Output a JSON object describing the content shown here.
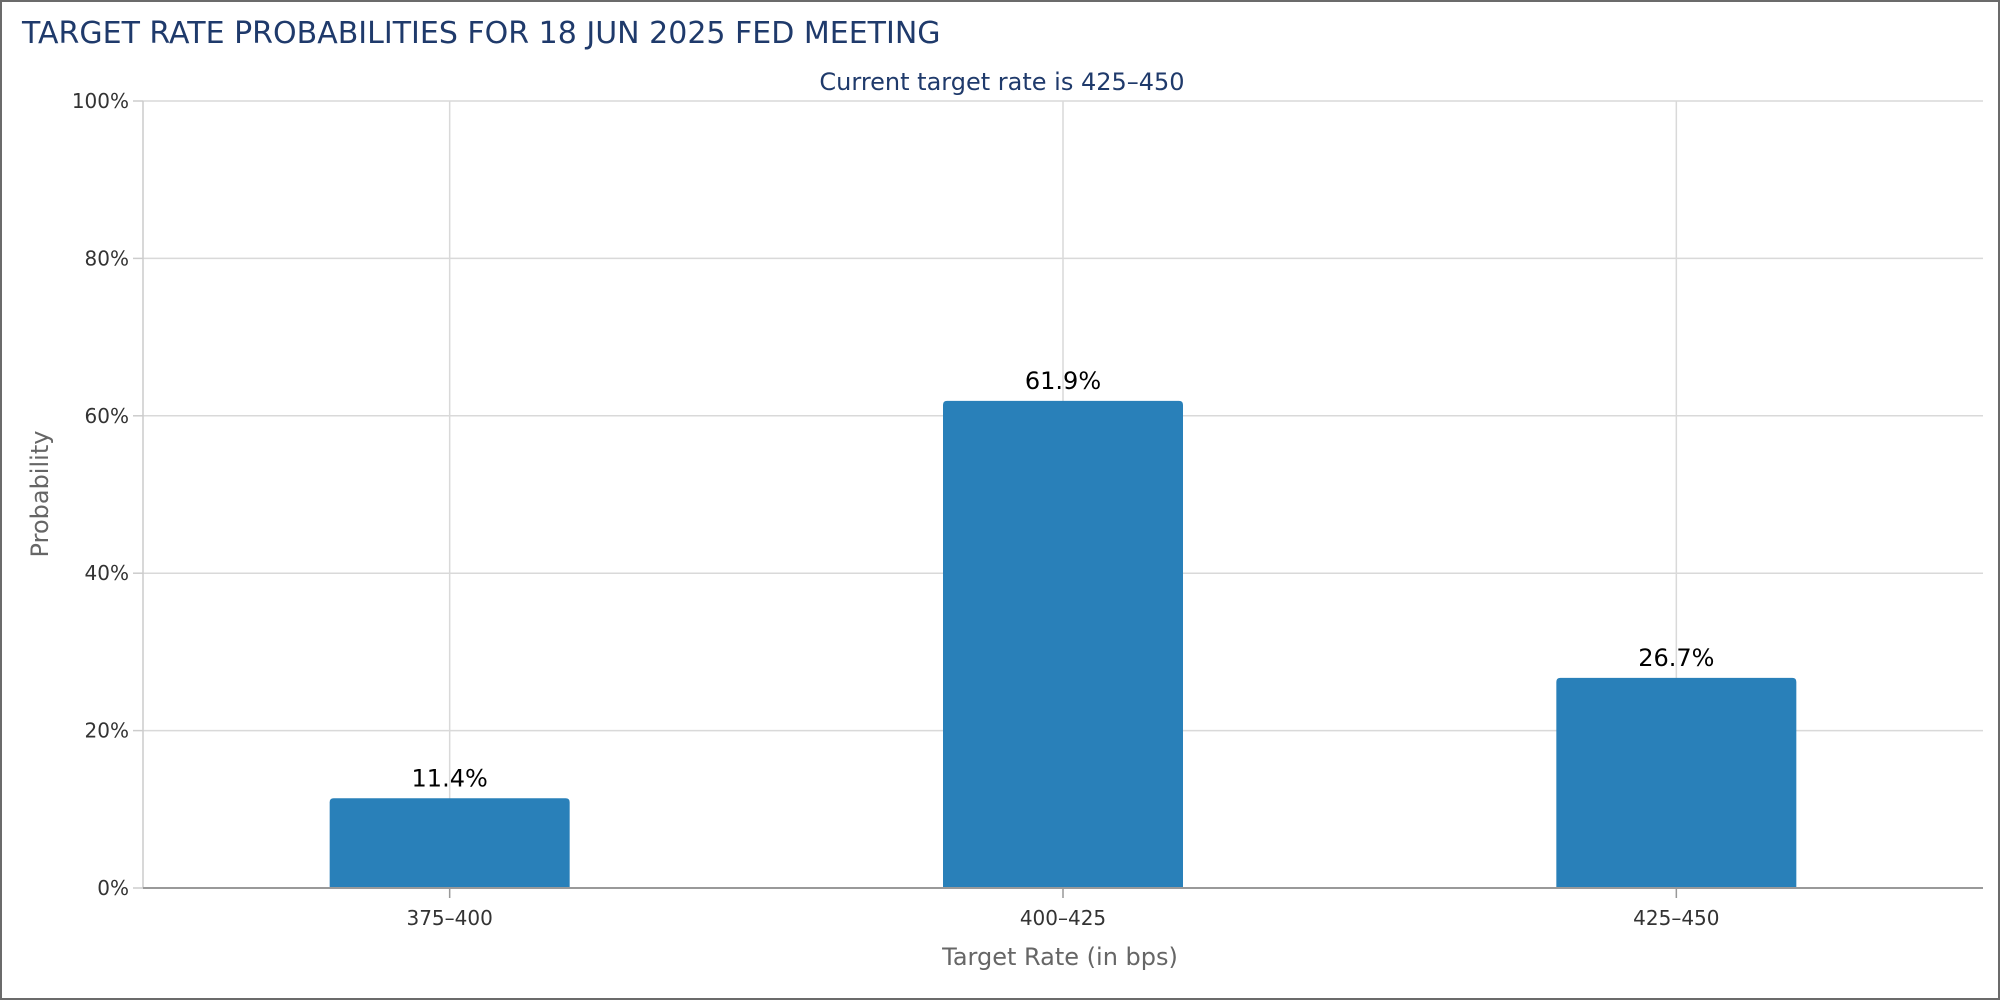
{
  "chart_data": {
    "type": "bar",
    "title": "TARGET RATE PROBABILITIES FOR 18 JUN 2025 FED MEETING",
    "subtitle": "Current target rate is 425–450",
    "xlabel": "Target Rate (in bps)",
    "ylabel": "Probability",
    "categories": [
      "375–400",
      "400–425",
      "425–450"
    ],
    "values": [
      11.4,
      61.9,
      26.7
    ],
    "data_labels": [
      "11.4%",
      "61.9%",
      "26.7%"
    ],
    "ylim": [
      0,
      100
    ],
    "yticks": [
      0,
      20,
      40,
      60,
      80,
      100
    ],
    "ytick_labels": [
      "0%",
      "20%",
      "40%",
      "60%",
      "80%",
      "100%"
    ],
    "grid": true,
    "legend": "none",
    "bar_color": "#2980b9",
    "title_color": "#1f3a6b"
  }
}
